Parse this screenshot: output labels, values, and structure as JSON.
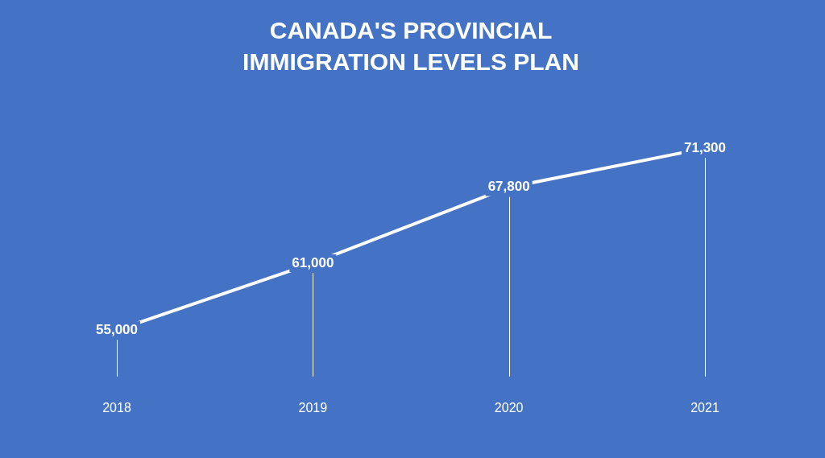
{
  "chart_data": {
    "type": "line",
    "title": [
      "CANADA'S PROVINCIAL",
      "IMMIGRATION LEVELS PLAN"
    ],
    "categories": [
      "2018",
      "2019",
      "2020",
      "2021"
    ],
    "values": [
      55000,
      61000,
      67800,
      71300
    ],
    "value_labels": [
      "55,000",
      "61,000",
      "67,800",
      "71,300"
    ],
    "color": "#ffffff",
    "data_labels": true,
    "grid": false,
    "tick_labels": "x"
  }
}
